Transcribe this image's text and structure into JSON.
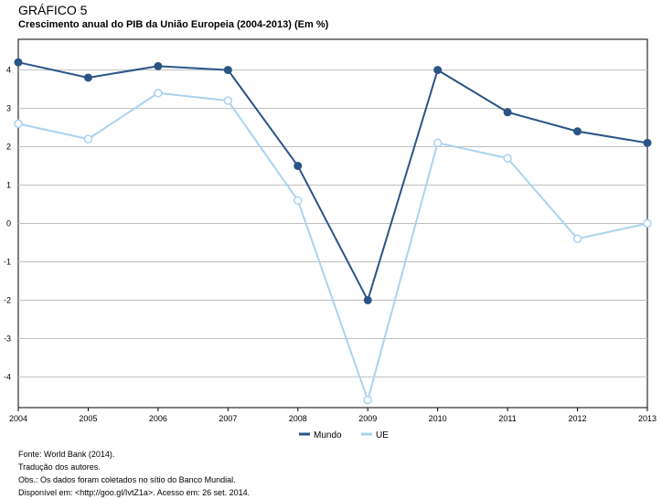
{
  "header": {
    "figure_label": "GRÁFICO 5",
    "title": "Crescimento anual do PIB da União Europeia (2004-2013) (Em %)"
  },
  "chart_data": {
    "type": "line",
    "categories": [
      "2004",
      "2005",
      "2006",
      "2007",
      "2008",
      "2009",
      "2010",
      "2011",
      "2012",
      "2013"
    ],
    "series": [
      {
        "name": "Mundo",
        "color": "#2b5486",
        "marker": "filled-circle",
        "values": [
          4.2,
          3.8,
          4.1,
          4.0,
          1.5,
          -2.0,
          4.0,
          2.9,
          2.4,
          2.1
        ]
      },
      {
        "name": "UE",
        "color": "#a9d3f0",
        "marker": "open-circle",
        "values": [
          2.6,
          2.2,
          3.4,
          3.2,
          0.6,
          -4.6,
          2.1,
          1.7,
          -0.4,
          0.0
        ]
      }
    ],
    "yticks": [
      -4,
      -3,
      -2,
      -1,
      0,
      1,
      2,
      3,
      4
    ],
    "ylim": [
      -4.8,
      4.8
    ],
    "grid": "horizontal",
    "legend_position": "bottom-center"
  },
  "notes": {
    "source": "Fonte: World Bank (2014).",
    "translation": "Tradução dos autores.",
    "obs": "Obs.: Os dados foram coletados no sítio do Banco Mundial.",
    "available": "Disponível em: <http://goo.gl/IvtZ1a>. Acesso em: 26 set. 2014."
  }
}
